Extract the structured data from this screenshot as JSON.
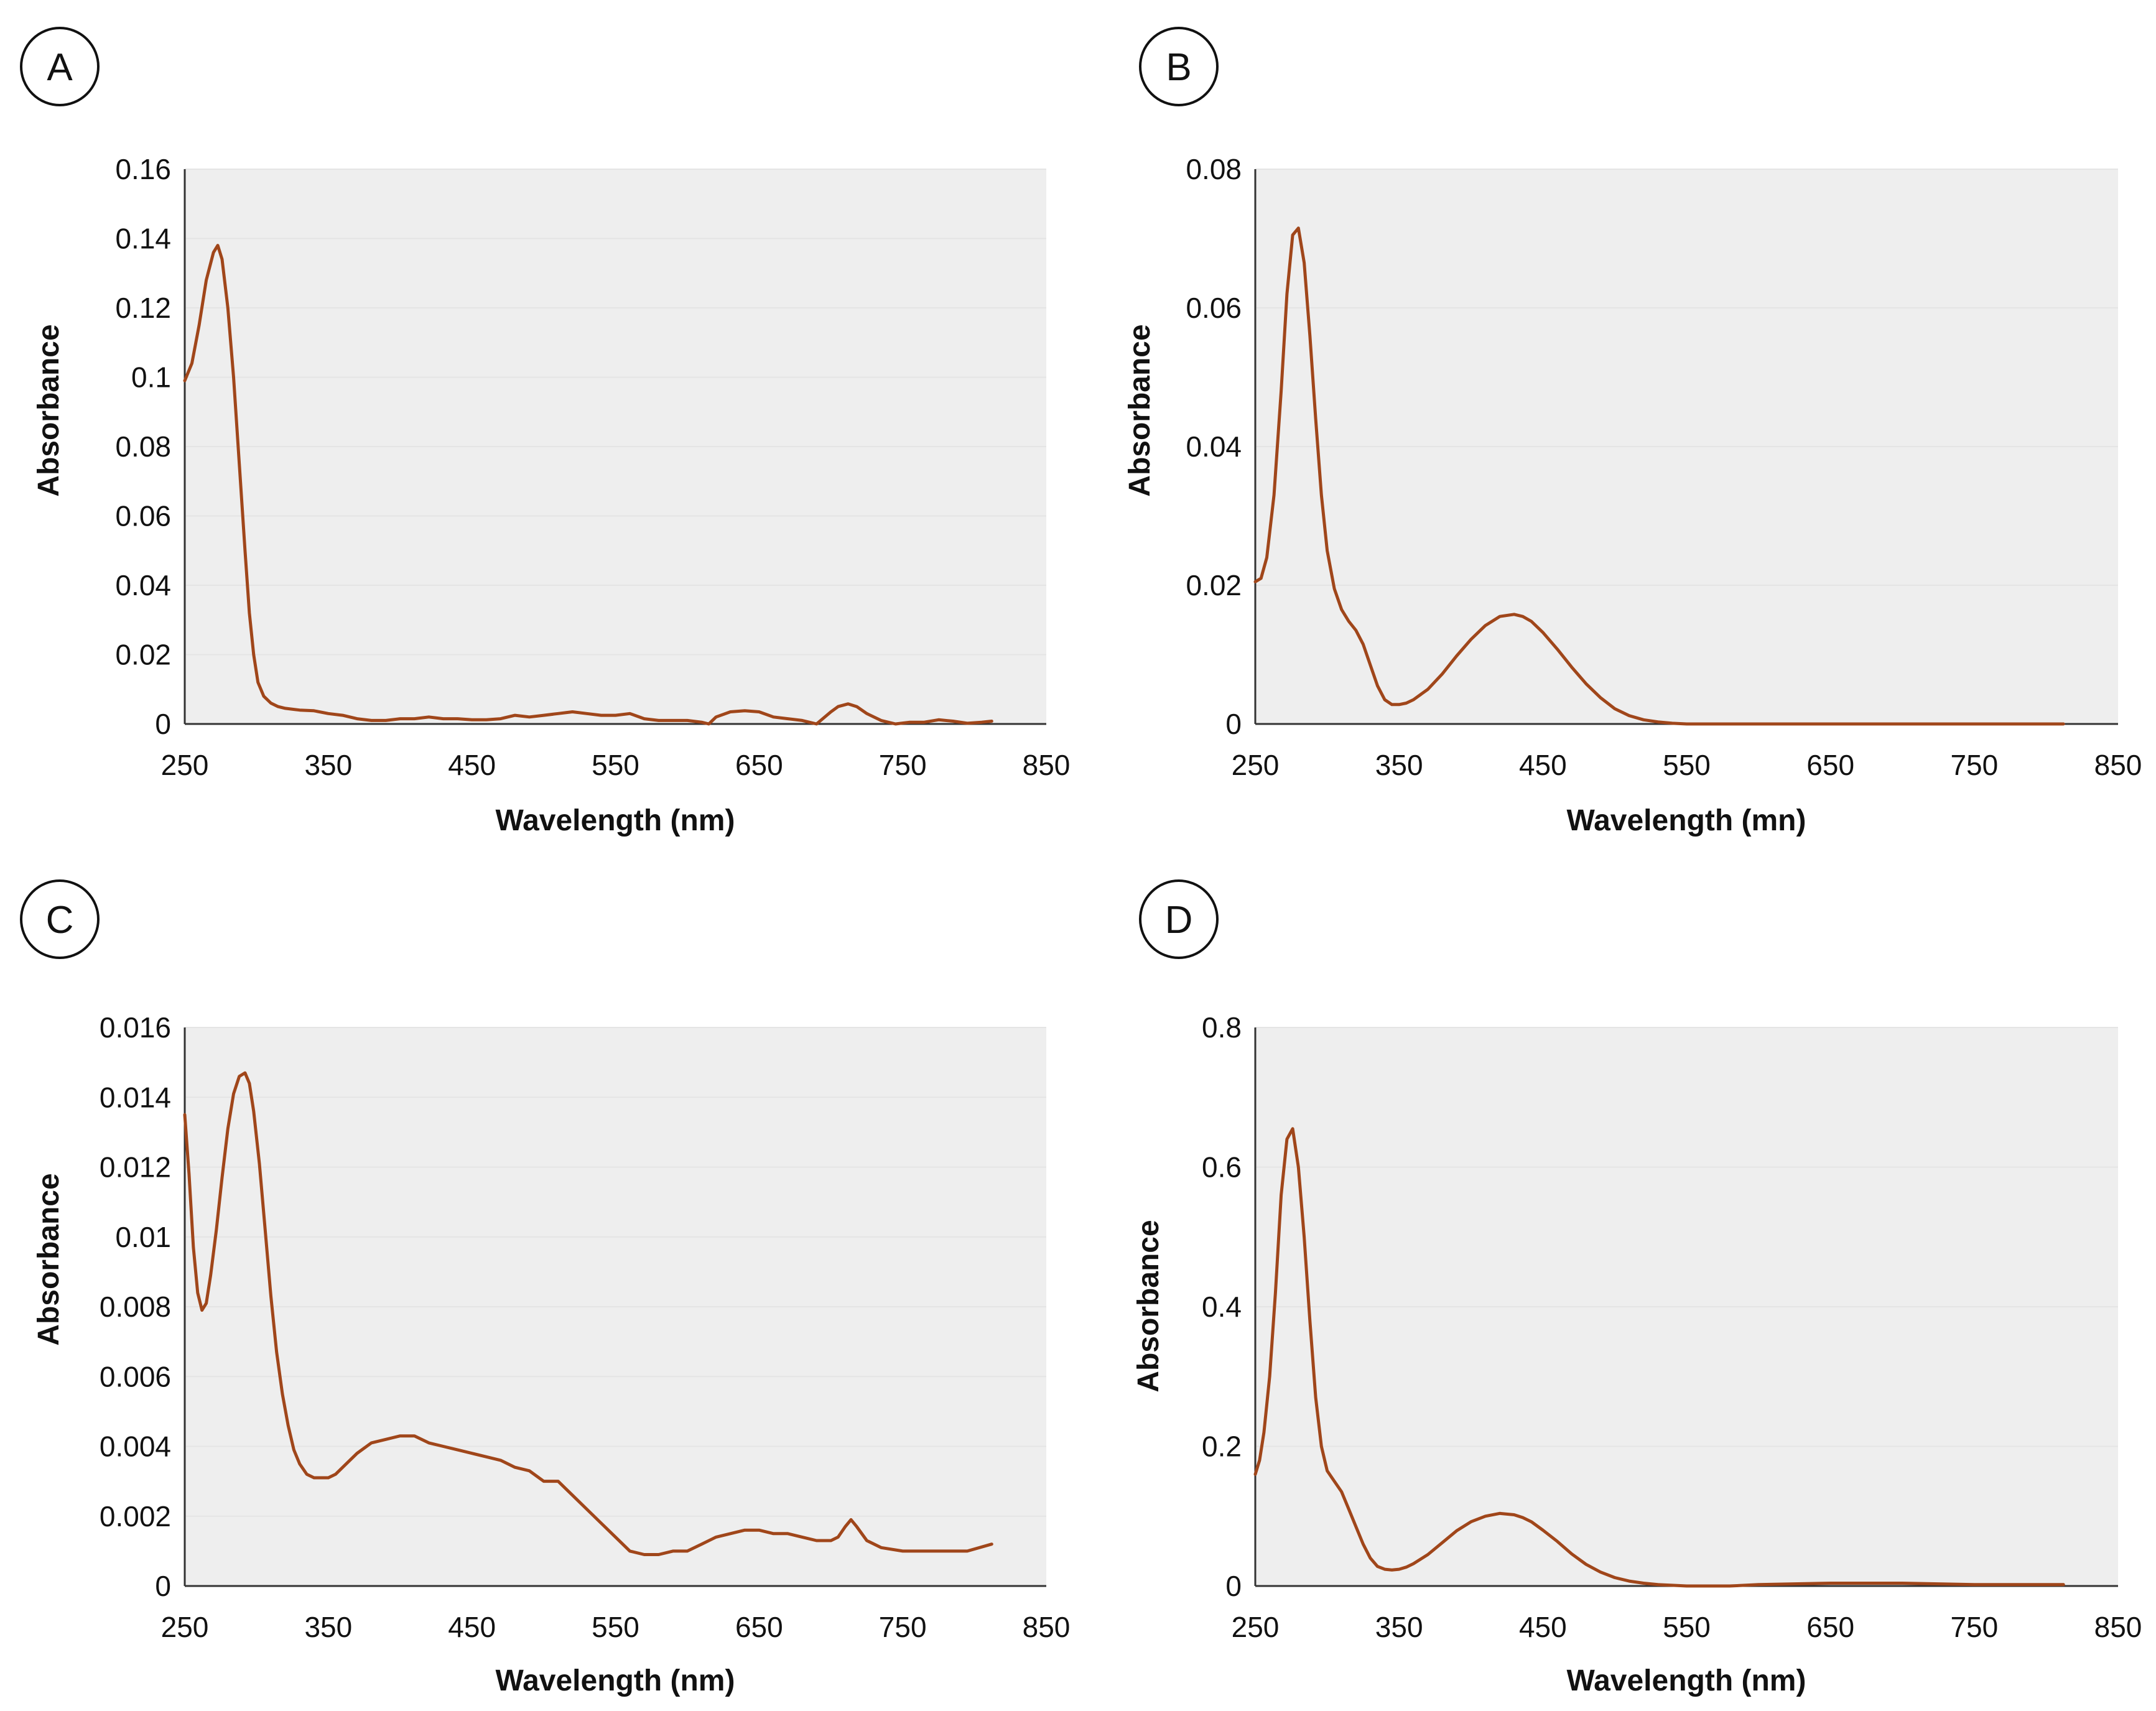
{
  "figure": {
    "background": "#ffffff",
    "plot_bg": "#eeeeee",
    "line_color": "#a0461a",
    "axis_color": "#333333"
  },
  "chart_data": [
    {
      "panel": "A",
      "type": "line",
      "xlabel": "Wavelength (nm)",
      "ylabel": "Absorbance",
      "xlim": [
        250,
        850
      ],
      "ylim": [
        0,
        0.16
      ],
      "xticks": [
        "250",
        "350",
        "450",
        "550",
        "650",
        "750",
        "850"
      ],
      "yticks": [
        "0",
        "0.02",
        "0.04",
        "0.06",
        "0.08",
        "0.1",
        "0.12",
        "0.14",
        "0.16"
      ],
      "series": [
        {
          "name": "A",
          "x": [
            250,
            255,
            260,
            265,
            270,
            273,
            276,
            280,
            284,
            288,
            292,
            295,
            298,
            301,
            305,
            310,
            315,
            320,
            330,
            340,
            350,
            360,
            370,
            380,
            390,
            400,
            410,
            420,
            430,
            440,
            450,
            460,
            470,
            480,
            490,
            500,
            510,
            520,
            530,
            540,
            550,
            560,
            570,
            580,
            590,
            600,
            610,
            615,
            620,
            630,
            640,
            650,
            660,
            670,
            680,
            690,
            700,
            705,
            712,
            718,
            725,
            735,
            745,
            755,
            765,
            775,
            785,
            795,
            805,
            812
          ],
          "y": [
            0.099,
            0.104,
            0.115,
            0.128,
            0.136,
            0.138,
            0.134,
            0.12,
            0.1,
            0.075,
            0.05,
            0.032,
            0.02,
            0.012,
            0.008,
            0.006,
            0.005,
            0.0045,
            0.004,
            0.0038,
            0.003,
            0.0025,
            0.0015,
            0.001,
            0.001,
            0.0015,
            0.0015,
            0.002,
            0.0015,
            0.0015,
            0.0012,
            0.0012,
            0.0015,
            0.0025,
            0.002,
            0.0025,
            0.003,
            0.0035,
            0.003,
            0.0025,
            0.0025,
            0.003,
            0.0015,
            0.001,
            0.001,
            0.001,
            0.0005,
            0.0,
            0.002,
            0.0035,
            0.0038,
            0.0035,
            0.002,
            0.0015,
            0.001,
            0.0,
            0.0035,
            0.005,
            0.0058,
            0.005,
            0.003,
            0.001,
            0.0,
            0.0005,
            0.0005,
            0.0012,
            0.0008,
            0.0002,
            0.0005,
            0.0008
          ]
        }
      ]
    },
    {
      "panel": "B",
      "type": "line",
      "xlabel": "Wavelength (mn)",
      "ylabel": "Absorbance",
      "xlim": [
        250,
        850
      ],
      "ylim": [
        0,
        0.08
      ],
      "xticks": [
        "250",
        "350",
        "450",
        "550",
        "650",
        "750",
        "850"
      ],
      "yticks": [
        "0",
        "0.02",
        "0.04",
        "0.06",
        "0.08"
      ],
      "series": [
        {
          "name": "B",
          "x": [
            250,
            254,
            258,
            263,
            268,
            272,
            276,
            280,
            284,
            288,
            292,
            296,
            300,
            305,
            310,
            315,
            320,
            325,
            330,
            335,
            340,
            345,
            350,
            355,
            360,
            370,
            380,
            390,
            400,
            410,
            420,
            430,
            436,
            442,
            450,
            460,
            470,
            480,
            490,
            500,
            510,
            520,
            530,
            540,
            550,
            560,
            580,
            600,
            650,
            700,
            750,
            812
          ],
          "y": [
            0.0205,
            0.021,
            0.024,
            0.033,
            0.048,
            0.062,
            0.0705,
            0.0715,
            0.0665,
            0.056,
            0.044,
            0.033,
            0.025,
            0.0195,
            0.0165,
            0.0148,
            0.0135,
            0.0115,
            0.0085,
            0.0055,
            0.0035,
            0.0028,
            0.0028,
            0.003,
            0.0035,
            0.005,
            0.0072,
            0.0098,
            0.0122,
            0.0142,
            0.0155,
            0.0158,
            0.0155,
            0.0148,
            0.0132,
            0.0108,
            0.0082,
            0.0058,
            0.0038,
            0.0022,
            0.0012,
            0.0006,
            0.0003,
            0.0001,
            0.0,
            0.0,
            0.0,
            0.0,
            0.0,
            0.0,
            0.0,
            0.0
          ]
        }
      ]
    },
    {
      "panel": "C",
      "type": "line",
      "xlabel": "Wavelength (nm)",
      "ylabel": "Absorbance",
      "xlim": [
        250,
        850
      ],
      "ylim": [
        0,
        0.016
      ],
      "xticks": [
        "250",
        "350",
        "450",
        "550",
        "650",
        "750",
        "850"
      ],
      "yticks": [
        "0",
        "0.002",
        "0.004",
        "0.006",
        "0.008",
        "0.01",
        "0.012",
        "0.014",
        "0.016"
      ],
      "series": [
        {
          "name": "C",
          "x": [
            250,
            253,
            256,
            259,
            262,
            265,
            268,
            272,
            276,
            280,
            284,
            288,
            292,
            295,
            298,
            302,
            306,
            310,
            314,
            318,
            322,
            326,
            330,
            335,
            340,
            345,
            350,
            355,
            360,
            370,
            380,
            390,
            400,
            410,
            420,
            430,
            440,
            450,
            460,
            470,
            480,
            490,
            500,
            510,
            515,
            520,
            530,
            540,
            550,
            560,
            570,
            580,
            590,
            600,
            610,
            620,
            630,
            640,
            650,
            660,
            670,
            680,
            690,
            700,
            705,
            710,
            714,
            718,
            725,
            735,
            750,
            765,
            780,
            795,
            812
          ],
          "y": [
            0.0135,
            0.0118,
            0.0097,
            0.0084,
            0.0079,
            0.0081,
            0.0089,
            0.0102,
            0.0117,
            0.0131,
            0.0141,
            0.0146,
            0.0147,
            0.0144,
            0.0136,
            0.0121,
            0.0102,
            0.0083,
            0.0067,
            0.0055,
            0.0046,
            0.0039,
            0.0035,
            0.0032,
            0.0031,
            0.0031,
            0.0031,
            0.0032,
            0.0034,
            0.0038,
            0.0041,
            0.0042,
            0.0043,
            0.0043,
            0.0041,
            0.004,
            0.0039,
            0.0038,
            0.0037,
            0.0036,
            0.0034,
            0.0033,
            0.003,
            0.003,
            0.0028,
            0.0026,
            0.0022,
            0.0018,
            0.0014,
            0.001,
            0.0009,
            0.0009,
            0.001,
            0.001,
            0.0012,
            0.0014,
            0.0015,
            0.0016,
            0.0016,
            0.0015,
            0.0015,
            0.0014,
            0.0013,
            0.0013,
            0.0014,
            0.0017,
            0.0019,
            0.0017,
            0.0013,
            0.0011,
            0.001,
            0.001,
            0.001,
            0.001,
            0.0012
          ]
        }
      ]
    },
    {
      "panel": "D",
      "type": "line",
      "xlabel": "Wavelength (nm)",
      "ylabel": "Absorbance",
      "xlim": [
        250,
        850
      ],
      "ylim": [
        0,
        0.8
      ],
      "xticks": [
        "250",
        "350",
        "450",
        "550",
        "650",
        "750",
        "850"
      ],
      "yticks": [
        "0",
        "0.2",
        "0.4",
        "0.6",
        "0.8"
      ],
      "series": [
        {
          "name": "D",
          "x": [
            250,
            253,
            256,
            260,
            264,
            268,
            272,
            276,
            280,
            284,
            288,
            292,
            296,
            300,
            305,
            310,
            315,
            320,
            325,
            330,
            335,
            340,
            345,
            350,
            355,
            360,
            370,
            380,
            390,
            400,
            410,
            420,
            430,
            436,
            442,
            450,
            460,
            470,
            480,
            490,
            500,
            510,
            520,
            530,
            540,
            550,
            560,
            580,
            600,
            650,
            700,
            750,
            812
          ],
          "y": [
            0.16,
            0.18,
            0.22,
            0.3,
            0.42,
            0.56,
            0.64,
            0.655,
            0.6,
            0.5,
            0.38,
            0.27,
            0.2,
            0.165,
            0.15,
            0.135,
            0.11,
            0.085,
            0.06,
            0.04,
            0.028,
            0.024,
            0.023,
            0.024,
            0.027,
            0.032,
            0.045,
            0.062,
            0.079,
            0.092,
            0.1,
            0.104,
            0.102,
            0.098,
            0.092,
            0.08,
            0.064,
            0.046,
            0.031,
            0.02,
            0.012,
            0.007,
            0.004,
            0.002,
            0.001,
            0.0,
            0.0,
            0.0,
            0.002,
            0.004,
            0.004,
            0.002,
            0.002
          ]
        }
      ]
    }
  ]
}
